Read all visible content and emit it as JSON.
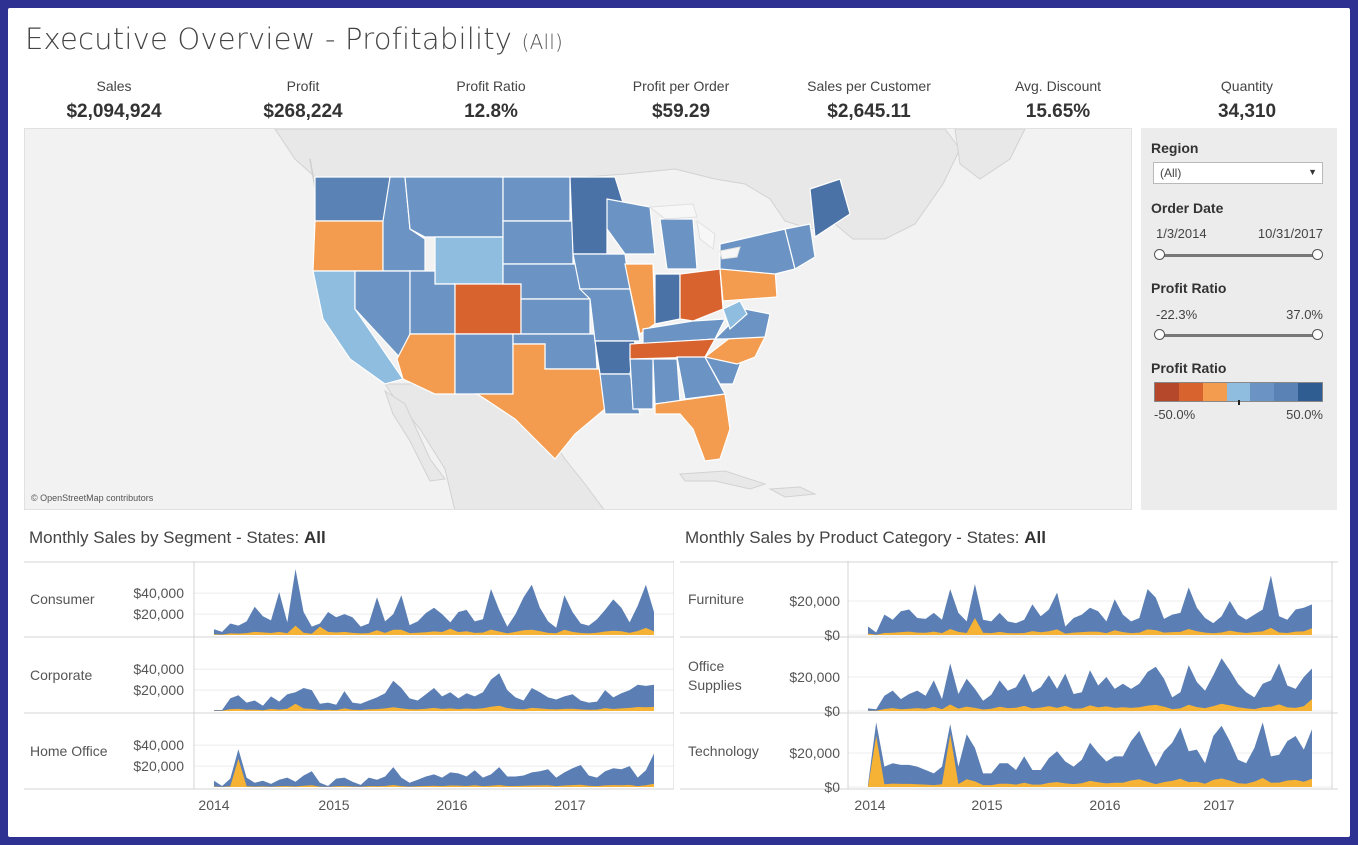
{
  "header": {
    "title": "Executive Overview - Profitability",
    "subtitle": "(All)"
  },
  "kpis": [
    {
      "label": "Sales",
      "value": "$2,094,924"
    },
    {
      "label": "Profit",
      "value": "$268,224"
    },
    {
      "label": "Profit Ratio",
      "value": "12.8%"
    },
    {
      "label": "Profit per Order",
      "value": "$59.29"
    },
    {
      "label": "Sales per Customer",
      "value": "$2,645.11"
    },
    {
      "label": "Avg. Discount",
      "value": "15.65%"
    },
    {
      "label": "Quantity",
      "value": "34,310"
    }
  ],
  "map": {
    "attribution": "© OpenStreetMap contributors"
  },
  "filters": {
    "region": {
      "label": "Region",
      "value": "(All)"
    },
    "order_date": {
      "label": "Order Date",
      "min": "1/3/2014",
      "max": "10/31/2017"
    },
    "profit_ratio": {
      "label": "Profit Ratio",
      "min": "-22.3%",
      "max": "37.0%"
    },
    "legend": {
      "label": "Profit Ratio",
      "min": "-50.0%",
      "max": "50.0%",
      "colors": [
        "#b5482b",
        "#d9632e",
        "#f39c50",
        "#8fbde0",
        "#6b94c4",
        "#5b82b5",
        "#2f5d92"
      ]
    }
  },
  "colors": {
    "sales": "#5b7fb4",
    "profit": "#f6b234",
    "gridline": "#ececec"
  },
  "chart_data": [
    {
      "type": "area",
      "title": "Monthly Sales by Segment - States: All",
      "title_prefix": "Monthly Sales by Segment - States: ",
      "title_state": "All",
      "x_labels": [
        "2014",
        "2015",
        "2016",
        "2017"
      ],
      "panels": [
        {
          "name": "Consumer",
          "name_lines": [
            "Consumer"
          ],
          "ticks": [
            "$40,000",
            "$20,000"
          ],
          "tick_values": [
            40000,
            20000
          ],
          "ylim": [
            0,
            65000
          ],
          "sales": [
            5500,
            3000,
            11000,
            9000,
            13000,
            27000,
            18000,
            14000,
            41000,
            12000,
            63000,
            22000,
            8000,
            11000,
            22000,
            17000,
            20000,
            17000,
            8000,
            11000,
            36000,
            13000,
            20000,
            38000,
            9500,
            13000,
            21000,
            26000,
            20000,
            12000,
            22000,
            24000,
            13000,
            15000,
            44000,
            24000,
            8000,
            20000,
            36000,
            48000,
            26000,
            13000,
            7000,
            38000,
            22000,
            11000,
            9000,
            15000,
            24000,
            34000,
            26000,
            12000,
            28000,
            48000,
            22000
          ],
          "profit": [
            800,
            400,
            1500,
            1300,
            1800,
            3000,
            2500,
            1900,
            3000,
            1700,
            9000,
            2200,
            1200,
            8000,
            3000,
            2400,
            3000,
            2000,
            1500,
            1800,
            4500,
            2000,
            5000,
            5000,
            1800,
            2100,
            2700,
            3400,
            2900,
            6000,
            2800,
            3500,
            2000,
            2300,
            5200,
            3300,
            1500,
            3000,
            4500,
            5000,
            3700,
            2000,
            1600,
            5000,
            3000,
            1900,
            1500,
            2200,
            3300,
            4100,
            3600,
            2000,
            3800,
            6800,
            3400
          ]
        },
        {
          "name": "Corporate",
          "name_lines": [
            "Corporate"
          ],
          "ticks": [
            "$40,000",
            "$20,000"
          ],
          "tick_values": [
            40000,
            20000
          ],
          "ylim": [
            0,
            65000
          ],
          "sales": [
            1000,
            1000,
            12000,
            15000,
            8000,
            10000,
            5000,
            14000,
            9000,
            16000,
            18000,
            22000,
            20000,
            7000,
            8000,
            6000,
            19000,
            8000,
            7000,
            10000,
            13000,
            17000,
            29000,
            22000,
            12000,
            10000,
            16000,
            22000,
            14000,
            18000,
            12000,
            17000,
            14000,
            18000,
            30000,
            36000,
            20000,
            13000,
            10000,
            22000,
            18000,
            13000,
            11000,
            14000,
            16000,
            10000,
            8000,
            9000,
            20000,
            13000,
            17000,
            20000,
            25000,
            24000,
            25000
          ],
          "profit": [
            200,
            200,
            1800,
            2000,
            1200,
            1300,
            800,
            2000,
            1300,
            2200,
            7000,
            2500,
            2000,
            1000,
            1200,
            900,
            2500,
            1200,
            1000,
            1500,
            1800,
            2500,
            3500,
            2500,
            1700,
            1500,
            2200,
            3000,
            2000,
            2500,
            1800,
            2400,
            2000,
            2600,
            4000,
            5000,
            2800,
            1900,
            1500,
            3000,
            2500,
            1800,
            1500,
            2000,
            2200,
            1500,
            1200,
            1300,
            2800,
            1900,
            2500,
            3000,
            3800,
            3600,
            3900
          ]
        },
        {
          "name": "Home Office",
          "name_lines": [
            "Home Office"
          ],
          "ticks": [
            "$40,000",
            "$20,000"
          ],
          "tick_values": [
            40000,
            20000
          ],
          "ylim": [
            0,
            65000
          ],
          "sales": [
            6000,
            1000,
            8000,
            36000,
            9000,
            4000,
            6000,
            3000,
            7000,
            9000,
            5000,
            11000,
            15000,
            4000,
            1000,
            8000,
            9000,
            5000,
            2000,
            9000,
            7000,
            10000,
            19000,
            9000,
            4000,
            7000,
            10000,
            12000,
            9000,
            14000,
            13000,
            10000,
            16000,
            9000,
            12000,
            19000,
            10000,
            10000,
            11000,
            14000,
            15000,
            17000,
            9000,
            14000,
            18000,
            21000,
            11000,
            9000,
            15000,
            18000,
            17000,
            20000,
            9000,
            16000,
            32000
          ],
          "profit": [
            500,
            100,
            700,
            27000,
            800,
            400,
            600,
            300,
            700,
            900,
            500,
            1200,
            1600,
            400,
            100,
            800,
            900,
            500,
            200,
            900,
            700,
            1000,
            1900,
            900,
            400,
            700,
            1000,
            1200,
            900,
            1400,
            1300,
            1000,
            1600,
            900,
            1200,
            1900,
            1000,
            1000,
            1100,
            1400,
            1500,
            1700,
            900,
            1400,
            1800,
            2100,
            1100,
            900,
            1500,
            1800,
            1700,
            2000,
            900,
            1600,
            3200
          ]
        }
      ]
    },
    {
      "type": "area",
      "title": "Monthly Sales by Product Category - States: All",
      "title_prefix": "Monthly Sales by Product Category - States: ",
      "title_state": "All",
      "x_labels": [
        "2014",
        "2015",
        "2016",
        "2017"
      ],
      "panels": [
        {
          "name": "Furniture",
          "name_lines": [
            "Furniture"
          ],
          "ticks": [
            "$20,000",
            "$0"
          ],
          "tick_values": [
            20000,
            0
          ],
          "ylim": [
            0,
            40000
          ],
          "sales": [
            5000,
            1500,
            12000,
            9000,
            14000,
            15000,
            10000,
            9500,
            13000,
            9000,
            27000,
            13000,
            8000,
            30000,
            9000,
            8000,
            13000,
            8000,
            7000,
            9000,
            18000,
            11000,
            15000,
            25000,
            5000,
            10000,
            12000,
            16000,
            14000,
            8000,
            21000,
            12000,
            8000,
            10000,
            27000,
            22000,
            9500,
            12000,
            13000,
            28000,
            16000,
            10000,
            7000,
            11000,
            20000,
            12000,
            9000,
            12000,
            15000,
            35000,
            11000,
            9000,
            15000,
            16000,
            18000
          ],
          "profit": [
            800,
            200,
            1200,
            1300,
            1700,
            2000,
            1400,
            1300,
            2000,
            1100,
            3500,
            1800,
            1200,
            10000,
            1300,
            1100,
            1800,
            1100,
            1000,
            1200,
            2300,
            1600,
            2200,
            3300,
            800,
            1400,
            1700,
            2000,
            1900,
            1100,
            2800,
            1700,
            1100,
            1400,
            3300,
            2900,
            1400,
            1700,
            1800,
            3500,
            2200,
            1400,
            1000,
            1500,
            2600,
            1700,
            1200,
            1700,
            2100,
            4200,
            1500,
            1200,
            2000,
            2100,
            4000
          ]
        },
        {
          "name": "Office Supplies",
          "name_lines": [
            "Office",
            "Supplies"
          ],
          "ticks": [
            "$20,000",
            "$0"
          ],
          "tick_values": [
            20000,
            0
          ],
          "ylim": [
            0,
            40000
          ],
          "sales": [
            1500,
            1000,
            9000,
            12000,
            7000,
            10000,
            12000,
            9000,
            18000,
            7000,
            28000,
            10000,
            19000,
            13000,
            6000,
            9500,
            18000,
            12000,
            14000,
            22000,
            11000,
            14000,
            21000,
            13000,
            22000,
            10000,
            11000,
            24000,
            15000,
            20000,
            13000,
            16000,
            13000,
            16000,
            23000,
            26000,
            19000,
            8000,
            11000,
            27000,
            17000,
            12000,
            21000,
            31000,
            24000,
            16000,
            11000,
            8000,
            16000,
            18000,
            28000,
            15000,
            13000,
            20000,
            25000
          ],
          "profit": [
            200,
            100,
            1200,
            1700,
            1000,
            1300,
            1700,
            1300,
            2500,
            1000,
            3800,
            1400,
            2600,
            1800,
            900,
            1300,
            2500,
            1700,
            1900,
            3000,
            1500,
            2000,
            2900,
            1800,
            3000,
            1400,
            1500,
            3300,
            2100,
            2700,
            1800,
            2200,
            1800,
            2200,
            3200,
            3600,
            2600,
            1100,
            1500,
            3700,
            2300,
            1700,
            2900,
            4300,
            3300,
            2200,
            1500,
            1100,
            2200,
            2500,
            3900,
            2100,
            1800,
            2800,
            7000
          ]
        },
        {
          "name": "Technology",
          "name_lines": [
            "Technology"
          ],
          "ticks": [
            "$20,000",
            "$0"
          ],
          "tick_values": [
            20000,
            0
          ],
          "ylim": [
            0,
            40000
          ],
          "sales": [
            1500,
            38000,
            12000,
            14000,
            13000,
            13000,
            12000,
            10000,
            8000,
            12000,
            37000,
            12000,
            31000,
            23000,
            8000,
            8000,
            14000,
            14000,
            10000,
            18000,
            10000,
            10000,
            17000,
            21000,
            15000,
            12000,
            16000,
            26000,
            20000,
            15000,
            18000,
            18000,
            27000,
            33000,
            22000,
            12000,
            21000,
            26000,
            35000,
            21000,
            22000,
            14000,
            30000,
            36000,
            27000,
            16000,
            14000,
            23000,
            38000,
            18000,
            19000,
            27000,
            30000,
            22000,
            34000
          ],
          "profit": [
            200,
            30000,
            1600,
            2000,
            1800,
            1800,
            1600,
            1400,
            1100,
            1600,
            31000,
            1700,
            4500,
            3300,
            1100,
            1100,
            1900,
            1900,
            1400,
            2500,
            1400,
            1400,
            2400,
            2900,
            2100,
            1700,
            2200,
            3600,
            2800,
            2100,
            2500,
            2500,
            3800,
            4600,
            3100,
            1700,
            2900,
            3600,
            4900,
            2900,
            3100,
            1900,
            4200,
            5000,
            3800,
            2200,
            1900,
            3200,
            5300,
            2500,
            2600,
            3800,
            4200,
            3100,
            4800
          ]
        }
      ]
    }
  ]
}
